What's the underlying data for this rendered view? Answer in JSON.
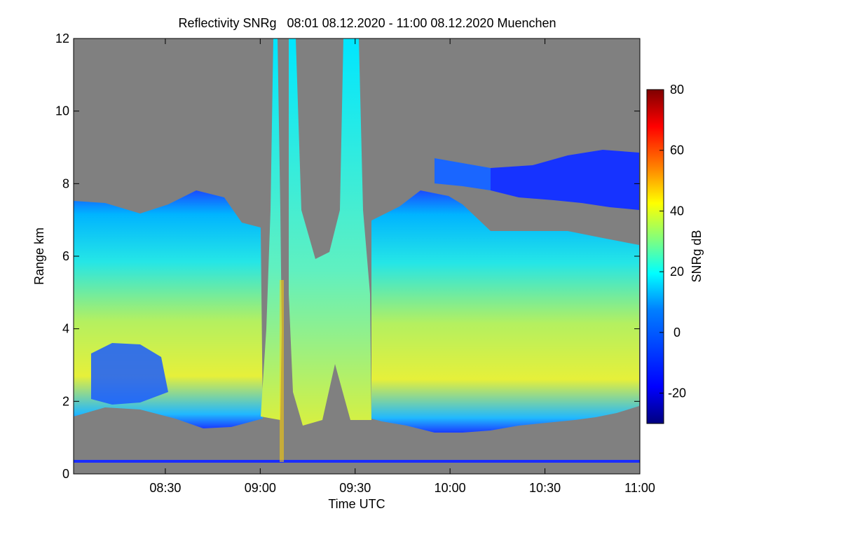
{
  "chart_data": {
    "type": "heatmap",
    "title": "Reflectivity SNRg   08:01 08.12.2020 - 11:00 08.12.2020 Muenchen",
    "xlabel": "Time UTC",
    "ylabel": "Range km",
    "colorbar_label": "SNRg dB",
    "x_range": [
      "08:01",
      "11:00"
    ],
    "x_ticks": [
      "08:30",
      "09:00",
      "09:30",
      "10:00",
      "10:30",
      "11:00"
    ],
    "y_range": [
      0,
      12
    ],
    "y_ticks": [
      "0",
      "2",
      "4",
      "6",
      "8",
      "10",
      "12"
    ],
    "colorbar_range": [
      -30,
      80
    ],
    "colorbar_ticks": [
      "80",
      "60",
      "40",
      "20",
      "0",
      "-20"
    ],
    "background_color": "#808080",
    "colormap": [
      "#00007f",
      "#0000ff",
      "#007fff",
      "#00ffff",
      "#7fff7f",
      "#ffff00",
      "#ff7f00",
      "#ff0000",
      "#7f0000"
    ]
  }
}
